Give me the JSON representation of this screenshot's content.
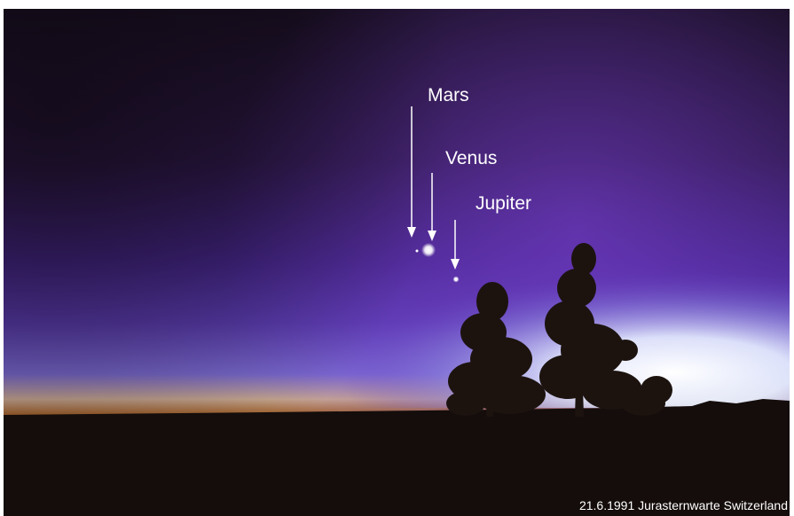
{
  "annotations": [
    "Mars",
    "Venus",
    "Jupiter"
  ],
  "caption": "21.6.1991 Jurasternwarte Switzerland"
}
